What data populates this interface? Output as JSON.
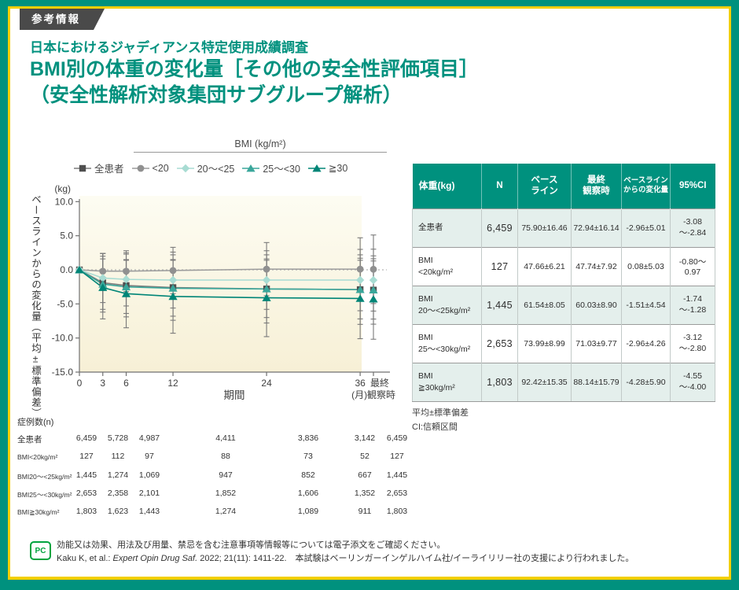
{
  "badge_label": "参考情報",
  "title": {
    "subtitle": "日本におけるジャディアンス特定使用成績調査",
    "line1": "BMI別の体重の変化量［その他の安全性評価項目］",
    "line2": "（安全性解析対象集団サブグループ解析）"
  },
  "chart_data": {
    "type": "line",
    "legend_group_label": "BMI (kg/m²)",
    "y_unit": "(kg)",
    "ylabel": "ベースラインからの変化量（平均±標準偏差）",
    "xlabel": "期間",
    "x_unit": "(月)",
    "x_ticks": [
      0,
      3,
      6,
      12,
      24,
      36
    ],
    "final_label_lines": [
      "最終",
      "観察時"
    ],
    "yticks": [
      10.0,
      5.0,
      0.0,
      -5.0,
      -10.0,
      -15.0
    ],
    "ylim": [
      -15,
      10
    ],
    "grid": false,
    "series": [
      {
        "name": "全患者",
        "marker": "square",
        "color": "#4f4f4f",
        "line_color": "#7d7d7d",
        "values": [
          0,
          -1.9,
          -2.3,
          -2.6,
          -2.8,
          -2.9
        ],
        "sd": [
          0,
          4.3,
          4.6,
          4.8,
          5.0,
          5.1
        ],
        "final": -2.96,
        "final_sd": 5.01
      },
      {
        "name": "<20",
        "marker": "circle",
        "color": "#909090",
        "line_color": "#9c9c9c",
        "values": [
          0,
          -0.2,
          -0.2,
          -0.1,
          0.1,
          0.1
        ],
        "sd": [
          0,
          2.6,
          3.0,
          3.4,
          3.9,
          4.6
        ],
        "final": 0.08,
        "final_sd": 5.03
      },
      {
        "name": "20～<25",
        "marker": "diamond",
        "color": "#a8dcd3",
        "line_color": "#a8dcd3",
        "values": [
          0,
          -1.2,
          -1.4,
          -1.5,
          -1.5,
          -1.5
        ],
        "sd": [
          0,
          3.6,
          3.9,
          4.1,
          4.3,
          4.5
        ],
        "final": -1.51,
        "final_sd": 4.54
      },
      {
        "name": "25～<30",
        "marker": "triangle",
        "color": "#3aa79b",
        "line_color": "#3aa79b",
        "values": [
          0,
          -2.1,
          -2.5,
          -2.7,
          -2.8,
          -2.9
        ],
        "sd": [
          0,
          3.7,
          3.9,
          4.1,
          4.2,
          4.3
        ],
        "final": -2.96,
        "final_sd": 4.26
      },
      {
        "name": "≧30",
        "marker": "triangle",
        "color": "#008577",
        "line_color": "#008577",
        "values": [
          0,
          -2.6,
          -3.5,
          -3.9,
          -4.1,
          -4.2
        ],
        "sd": [
          0,
          4.6,
          5.0,
          5.4,
          5.7,
          5.9
        ],
        "final": -4.28,
        "final_sd": 5.9
      }
    ]
  },
  "stats_table": {
    "headers": [
      [
        "体重(kg)"
      ],
      [
        "N"
      ],
      [
        "ベース",
        "ライン"
      ],
      [
        "最終",
        "観察時"
      ],
      [
        "ベースライン",
        "からの変化量"
      ],
      [
        "95%CI"
      ]
    ],
    "rows": [
      {
        "label": [
          "全患者"
        ],
        "cells": [
          "6,459",
          "75.90±16.46",
          "72.94±16.14",
          "-2.96±5.01",
          "-3.08～-2.84"
        ]
      },
      {
        "label": [
          "BMI",
          "<20kg/m²"
        ],
        "cells": [
          "127",
          "47.66±6.21",
          "47.74±7.92",
          "0.08±5.03",
          "-0.80～0.97"
        ]
      },
      {
        "label": [
          "BMI",
          "20～<25kg/m²"
        ],
        "cells": [
          "1,445",
          "61.54±8.05",
          "60.03±8.90",
          "-1.51±4.54",
          "-1.74～-1.28"
        ]
      },
      {
        "label": [
          "BMI",
          "25～<30kg/m²"
        ],
        "cells": [
          "2,653",
          "73.99±8.99",
          "71.03±9.77",
          "-2.96±4.26",
          "-3.12～-2.80"
        ]
      },
      {
        "label": [
          "BMI",
          "≧30kg/m²"
        ],
        "cells": [
          "1,803",
          "92.42±15.35",
          "88.14±15.79",
          "-4.28±5.90",
          "-4.55～-4.00"
        ]
      }
    ],
    "footnotes": [
      "平均±標準偏差",
      "CI:信頼区間"
    ]
  },
  "sample_table": {
    "caption": "症例数(n)",
    "rows": [
      {
        "label": "全患者",
        "values": [
          "6,459",
          "5,728",
          "4,987",
          "4,411",
          "3,836",
          "3,142",
          "6,459"
        ]
      },
      {
        "label": "BMI<20kg/m²",
        "values": [
          "127",
          "112",
          "97",
          "88",
          "73",
          "52",
          "127"
        ]
      },
      {
        "label": "BMI20～<25kg/m²",
        "values": [
          "1,445",
          "1,274",
          "1,069",
          "947",
          "852",
          "667",
          "1,445"
        ]
      },
      {
        "label": "BMI25～<30kg/m²",
        "values": [
          "2,653",
          "2,358",
          "2,101",
          "1,852",
          "1,606",
          "1,352",
          "2,653"
        ]
      },
      {
        "label": "BMI≧30kg/m²",
        "values": [
          "1,803",
          "1,623",
          "1,443",
          "1,274",
          "1,089",
          "911",
          "1,803"
        ]
      }
    ]
  },
  "footer": {
    "icon_label": "PC",
    "line1": "効能又は効果、用法及び用量、禁忌を含む注意事項等情報等については電子添文をご確認ください。",
    "line2_pre": "Kaku K, et al.: ",
    "line2_italic": "Expert Opin Drug Saf.",
    "line2_post": " 2022; 21(11): 1411-22.　本試験はベーリンガーインゲルハイム社/イーライリリー社の支援により行われました。"
  },
  "colors": {
    "frame": "#00917e",
    "frame_inner_line": "#f3cf00",
    "badge_bg": "#4a4a4a",
    "title_text": "#00917e",
    "table_header_bg": "#00917e",
    "table_row_alt": "#e4efec",
    "plot_bg_top": "#fdfcf2",
    "plot_bg_bottom": "#f7f0d6",
    "error_bar": "#7a7a7a",
    "footer_icon_green": "#00a33e"
  }
}
